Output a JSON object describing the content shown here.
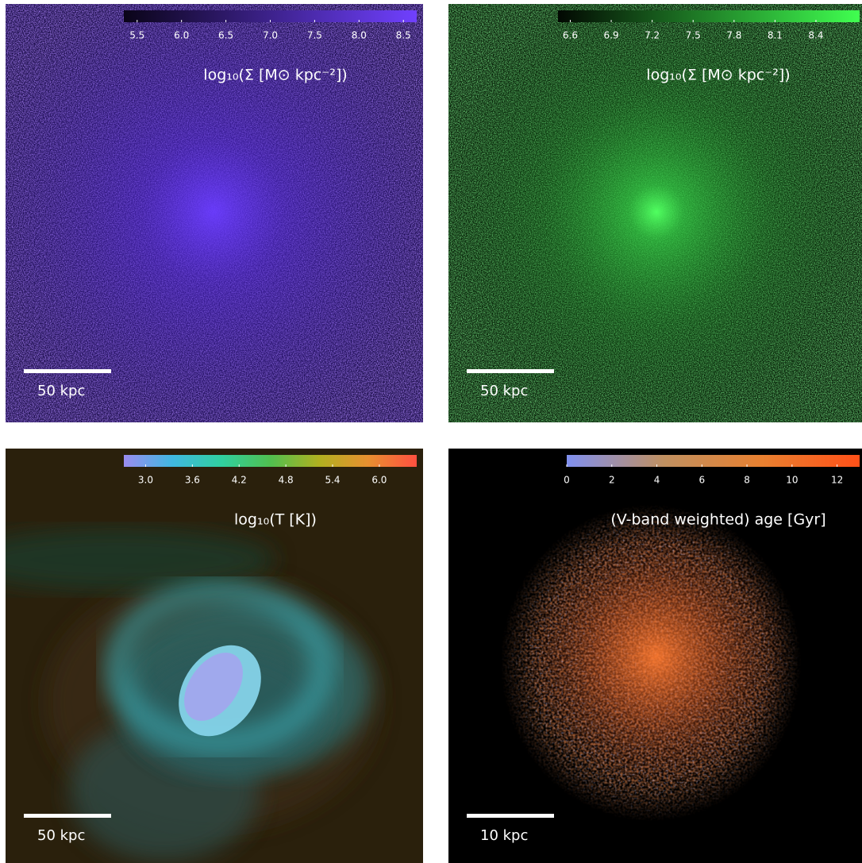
{
  "chart_data": [
    {
      "type": "image",
      "label": "log₁₀(Σ [M⊙ kpc⁻²])",
      "scalebar": "50 kpc",
      "colorbar": {
        "lim": [
          5.35,
          8.65
        ],
        "colors": [
          "#0a0418",
          "#7040ff"
        ],
        "ticks": [
          5.5,
          {
            "value": 6,
            "label": "6.0"
          },
          6.5,
          {
            "value": 7,
            "label": "7.0"
          },
          7.5,
          {
            "value": 8,
            "label": "8.0"
          },
          8.5
        ]
      }
    },
    {
      "type": "image",
      "label": "log₁₀(Σ [M⊙ kpc⁻²])",
      "scalebar": "50 kpc",
      "colorbar": {
        "lim": [
          6.51,
          8.72
        ],
        "colors": [
          "#020802",
          "#40ff50"
        ],
        "ticks": [
          6.6,
          6.9,
          7.2,
          7.5,
          7.8,
          8.1,
          8.4
        ]
      }
    },
    {
      "type": "image",
      "label": "log₁₀(T [K])",
      "scalebar": "50 kpc",
      "colorbar": {
        "lim": [
          2.72,
          6.48
        ],
        "colors": [
          "#9a8cf0",
          "#40b8e0",
          "#30d0a0",
          "#50c050",
          "#b0b020",
          "#e89030",
          "#ff5040"
        ],
        "ticks": [
          {
            "value": 3,
            "label": "3.0"
          },
          3.6,
          4.2,
          4.8,
          5.4,
          {
            "value": 6,
            "label": "6.0"
          }
        ]
      }
    },
    {
      "type": "image",
      "label": "(V-band weighted) age [Gyr]",
      "scalebar": "10 kpc",
      "colorbar": {
        "lim": [
          0,
          13
        ],
        "colors": [
          "#8090f0",
          "#c09060",
          "#e88030",
          "#ff5018"
        ],
        "ticks": [
          0,
          2,
          4,
          6,
          8,
          10,
          12
        ]
      }
    }
  ]
}
